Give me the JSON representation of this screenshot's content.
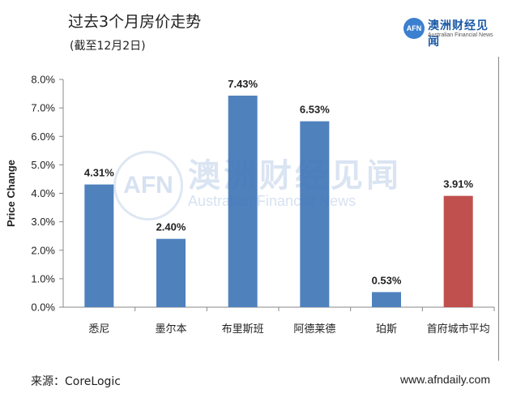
{
  "header": {
    "title": "过去3个月房价走势",
    "subtitle": "(截至12月2日)"
  },
  "logo": {
    "mark": "AFN",
    "name_cn": "澳洲财经见闻",
    "name_en": "Australian Financial News"
  },
  "watermark": {
    "mark": "AFN",
    "name_cn": "澳洲财经见闻",
    "name_en": "Australian Financial News"
  },
  "footer": {
    "source": "来源：CoreLogic",
    "website": "www.afndaily.com"
  },
  "chart_data": {
    "type": "bar",
    "title": "过去3个月房价走势",
    "subtitle": "(截至12月2日)",
    "xlabel": "",
    "ylabel": "Price Change",
    "ylim": [
      0,
      8
    ],
    "ytick_labels": [
      "0.0%",
      "1.0%",
      "2.0%",
      "3.0%",
      "4.0%",
      "5.0%",
      "6.0%",
      "7.0%",
      "8.0%"
    ],
    "grid": false,
    "legend": "none",
    "categories": [
      "悉尼",
      "墨尔本",
      "布里斯班",
      "阿德莱德",
      "珀斯",
      "首府城市平均"
    ],
    "values": [
      4.31,
      2.4,
      7.43,
      6.53,
      0.53,
      3.91
    ],
    "data_labels": [
      "4.31%",
      "2.40%",
      "7.43%",
      "6.53%",
      "0.53%",
      "3.91%"
    ],
    "colors": [
      "#4f81bd",
      "#4f81bd",
      "#4f81bd",
      "#4f81bd",
      "#4f81bd",
      "#c0504d"
    ]
  }
}
